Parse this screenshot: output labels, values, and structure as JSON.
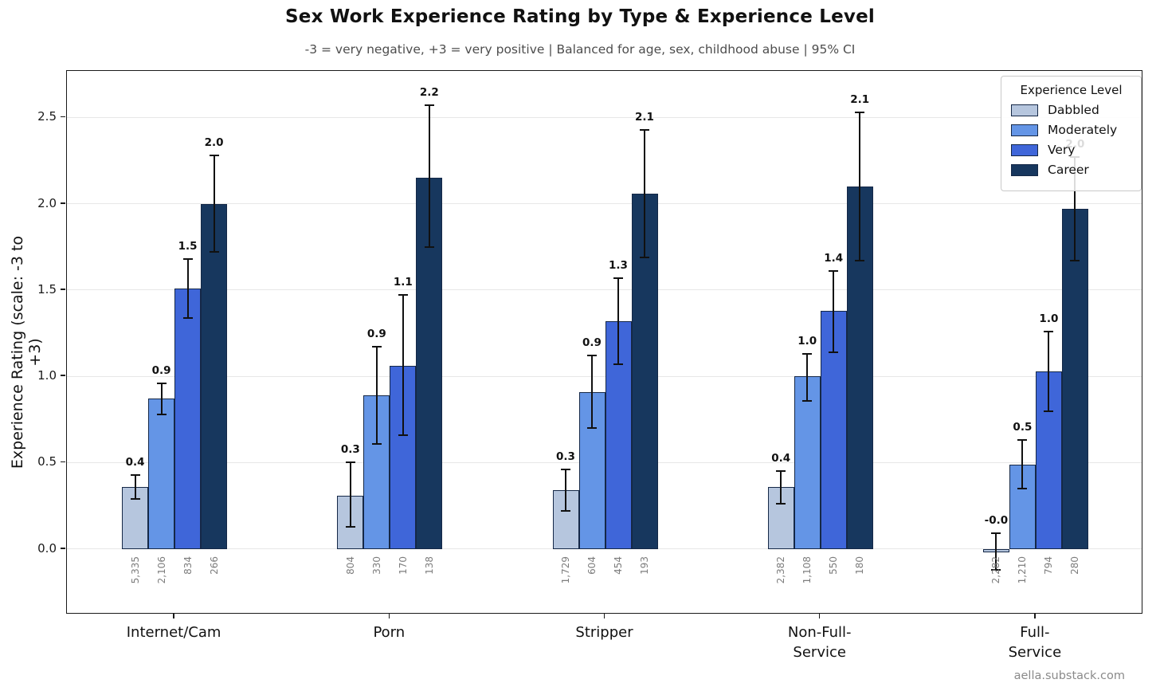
{
  "header": {
    "title": "Sex Work Experience Rating by Type & Experience Level",
    "subtitle": "-3 = very negative, +3 = very positive  |  Balanced for age, sex, childhood abuse  |  95% CI"
  },
  "footer": {
    "watermark": "aella.substack.com"
  },
  "chart_data": {
    "type": "bar",
    "title": "Sex Work Experience Rating by Type & Experience Level",
    "subtitle": "-3 = very negative, +3 = very positive  |  Balanced for age, sex, childhood abuse  |  95% CI",
    "ylabel": "Experience Rating  (scale: -3 to +3)",
    "xlabel": "",
    "ylim": [
      -0.38,
      2.77
    ],
    "yticks": [
      "0.0",
      "0.5",
      "1.0",
      "1.5",
      "2.0",
      "2.5"
    ],
    "ytick_values": [
      0.0,
      0.5,
      1.0,
      1.5,
      2.0,
      2.5
    ],
    "grid": true,
    "legend_position": "upper right",
    "legend_title": "Experience Level",
    "categories": [
      "Internet/Cam",
      "Porn",
      "Stripper",
      "Non-Full-\nService",
      "Full-\nService"
    ],
    "series": [
      {
        "name": "Dabbled",
        "color": "#b6c6de",
        "values": [
          0.36,
          0.31,
          0.34,
          0.36,
          -0.02
        ],
        "labels": [
          "0.4",
          "0.3",
          "0.3",
          "0.4",
          "-0.0"
        ],
        "ci_low": [
          0.29,
          0.13,
          0.22,
          0.26,
          -0.12
        ],
        "ci_high": [
          0.43,
          0.5,
          0.46,
          0.45,
          0.09
        ],
        "n": [
          "5,335",
          "804",
          "1,729",
          "2,382",
          "2,282"
        ]
      },
      {
        "name": "Moderately",
        "color": "#6495e6",
        "values": [
          0.87,
          0.89,
          0.91,
          1.0,
          0.49
        ],
        "labels": [
          "0.9",
          "0.9",
          "0.9",
          "1.0",
          "0.5"
        ],
        "ci_low": [
          0.78,
          0.61,
          0.7,
          0.86,
          0.35
        ],
        "ci_high": [
          0.96,
          1.17,
          1.12,
          1.13,
          0.63
        ],
        "n": [
          "2,106",
          "330",
          "604",
          "1,108",
          "1,210"
        ]
      },
      {
        "name": "Very",
        "color": "#3f66d9",
        "values": [
          1.51,
          1.06,
          1.32,
          1.38,
          1.03
        ],
        "labels": [
          "1.5",
          "1.1",
          "1.3",
          "1.4",
          "1.0"
        ],
        "ci_low": [
          1.34,
          0.66,
          1.07,
          1.14,
          0.8
        ],
        "ci_high": [
          1.68,
          1.47,
          1.57,
          1.61,
          1.26
        ],
        "n": [
          "834",
          "170",
          "454",
          "550",
          "794"
        ]
      },
      {
        "name": "Career",
        "color": "#17375e",
        "values": [
          2.0,
          2.15,
          2.06,
          2.1,
          1.97
        ],
        "labels": [
          "2.0",
          "2.2",
          "2.1",
          "2.1",
          "2.0"
        ],
        "ci_low": [
          1.72,
          1.75,
          1.69,
          1.67,
          1.67
        ],
        "ci_high": [
          2.28,
          2.57,
          2.43,
          2.53,
          2.27
        ],
        "n": [
          "266",
          "138",
          "193",
          "180",
          "280"
        ]
      }
    ]
  }
}
